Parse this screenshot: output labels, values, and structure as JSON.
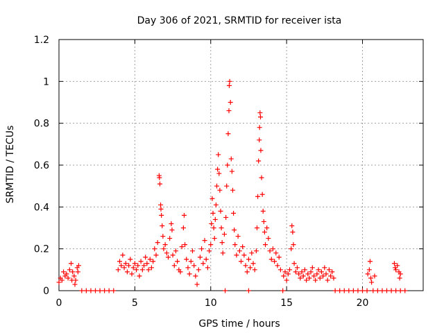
{
  "chart_data": {
    "type": "scatter",
    "title": "Day 306 of 2021, SRMTID for receiver ista",
    "xlabel": "GPS time / hours",
    "ylabel": "SRMTID / TECUs",
    "xlim": [
      0,
      24
    ],
    "ylim": [
      0,
      1.2
    ],
    "x_ticks": [
      0,
      5,
      10,
      15,
      20
    ],
    "x_tick_labels": [
      "0",
      "5",
      "10",
      "15",
      "20"
    ],
    "y_ticks": [
      0,
      0.2,
      0.4,
      0.6,
      0.8,
      1,
      1.2
    ],
    "y_tick_labels": [
      "0",
      "0.2",
      "0.4",
      "0.6",
      "0.8",
      "1",
      "1.2"
    ],
    "grid": true,
    "marker": "+",
    "color": "#ff0000",
    "series": [
      {
        "name": "SRMTID",
        "points": [
          [
            0.0,
            0.04
          ],
          [
            0.1,
            0.06
          ],
          [
            0.2,
            0.05
          ],
          [
            0.3,
            0.09
          ],
          [
            0.4,
            0.07
          ],
          [
            0.5,
            0.08
          ],
          [
            0.6,
            0.06
          ],
          [
            0.7,
            0.1
          ],
          [
            0.8,
            0.13
          ],
          [
            0.9,
            0.09
          ],
          [
            1.0,
            0.07
          ],
          [
            1.1,
            0.05
          ],
          [
            1.2,
            0.11
          ],
          [
            1.3,
            0.12
          ],
          [
            1.25,
            0.09
          ],
          [
            1.05,
            0.03
          ],
          [
            0.85,
            0.05
          ],
          [
            1.5,
            0.0
          ],
          [
            1.8,
            0.0
          ],
          [
            2.1,
            0.0
          ],
          [
            2.4,
            0.0
          ],
          [
            2.7,
            0.0
          ],
          [
            3.0,
            0.0
          ],
          [
            3.3,
            0.0
          ],
          [
            3.6,
            0.0
          ],
          [
            3.9,
            0.1
          ],
          [
            4.0,
            0.14
          ],
          [
            4.1,
            0.12
          ],
          [
            4.2,
            0.17
          ],
          [
            4.3,
            0.11
          ],
          [
            4.4,
            0.13
          ],
          [
            4.5,
            0.09
          ],
          [
            4.6,
            0.12
          ],
          [
            4.7,
            0.15
          ],
          [
            4.8,
            0.08
          ],
          [
            4.9,
            0.11
          ],
          [
            5.0,
            0.13
          ],
          [
            5.1,
            0.1
          ],
          [
            5.2,
            0.12
          ],
          [
            5.3,
            0.07
          ],
          [
            5.4,
            0.14
          ],
          [
            5.5,
            0.1
          ],
          [
            5.6,
            0.12
          ],
          [
            5.7,
            0.16
          ],
          [
            5.8,
            0.13
          ],
          [
            5.9,
            0.1
          ],
          [
            6.0,
            0.15
          ],
          [
            6.1,
            0.11
          ],
          [
            6.2,
            0.14
          ],
          [
            6.3,
            0.2
          ],
          [
            6.4,
            0.17
          ],
          [
            6.5,
            0.23
          ],
          [
            6.6,
            0.55
          ],
          [
            6.62,
            0.54
          ],
          [
            6.65,
            0.51
          ],
          [
            6.7,
            0.41
          ],
          [
            6.72,
            0.39
          ],
          [
            6.75,
            0.36
          ],
          [
            6.8,
            0.31
          ],
          [
            6.85,
            0.26
          ],
          [
            6.9,
            0.2
          ],
          [
            7.0,
            0.22
          ],
          [
            7.1,
            0.18
          ],
          [
            7.2,
            0.16
          ],
          [
            7.3,
            0.25
          ],
          [
            7.4,
            0.32
          ],
          [
            7.45,
            0.29
          ],
          [
            7.5,
            0.17
          ],
          [
            7.6,
            0.12
          ],
          [
            7.7,
            0.19
          ],
          [
            7.8,
            0.14
          ],
          [
            7.9,
            0.1
          ],
          [
            8.0,
            0.09
          ],
          [
            8.1,
            0.21
          ],
          [
            8.2,
            0.3
          ],
          [
            8.25,
            0.36
          ],
          [
            8.3,
            0.22
          ],
          [
            8.4,
            0.15
          ],
          [
            8.5,
            0.11
          ],
          [
            8.6,
            0.08
          ],
          [
            8.7,
            0.14
          ],
          [
            8.8,
            0.19
          ],
          [
            8.9,
            0.12
          ],
          [
            9.0,
            0.07
          ],
          [
            9.1,
            0.03
          ],
          [
            9.2,
            0.1
          ],
          [
            9.3,
            0.16
          ],
          [
            9.4,
            0.2
          ],
          [
            9.5,
            0.13
          ],
          [
            9.6,
            0.24
          ],
          [
            9.7,
            0.15
          ],
          [
            9.8,
            0.11
          ],
          [
            9.9,
            0.19
          ],
          [
            10.0,
            0.22
          ],
          [
            10.05,
            0.32
          ],
          [
            10.1,
            0.44
          ],
          [
            10.15,
            0.37
          ],
          [
            10.2,
            0.3
          ],
          [
            10.25,
            0.25
          ],
          [
            10.3,
            0.34
          ],
          [
            10.35,
            0.41
          ],
          [
            10.4,
            0.5
          ],
          [
            10.45,
            0.58
          ],
          [
            10.5,
            0.65
          ],
          [
            10.55,
            0.56
          ],
          [
            10.6,
            0.48
          ],
          [
            10.65,
            0.38
          ],
          [
            10.7,
            0.3
          ],
          [
            10.75,
            0.23
          ],
          [
            10.8,
            0.18
          ],
          [
            10.9,
            0.27
          ],
          [
            11.0,
            0.35
          ],
          [
            11.05,
            0.5
          ],
          [
            11.1,
            0.6
          ],
          [
            11.15,
            0.75
          ],
          [
            11.2,
            0.86
          ],
          [
            11.22,
            0.98
          ],
          [
            11.25,
            1.0
          ],
          [
            11.3,
            0.9
          ],
          [
            11.35,
            0.63
          ],
          [
            11.4,
            0.57
          ],
          [
            11.45,
            0.48
          ],
          [
            11.5,
            0.37
          ],
          [
            11.55,
            0.29
          ],
          [
            11.6,
            0.22
          ],
          [
            11.7,
            0.17
          ],
          [
            11.8,
            0.26
          ],
          [
            11.9,
            0.19
          ],
          [
            12.0,
            0.14
          ],
          [
            12.1,
            0.21
          ],
          [
            12.2,
            0.17
          ],
          [
            12.3,
            0.12
          ],
          [
            12.4,
            0.09
          ],
          [
            12.5,
            0.15
          ],
          [
            12.6,
            0.11
          ],
          [
            12.7,
            0.18
          ],
          [
            12.8,
            0.13
          ],
          [
            12.9,
            0.1
          ],
          [
            13.0,
            0.19
          ],
          [
            13.05,
            0.3
          ],
          [
            13.1,
            0.45
          ],
          [
            13.15,
            0.62
          ],
          [
            13.2,
            0.72
          ],
          [
            13.22,
            0.78
          ],
          [
            13.25,
            0.85
          ],
          [
            13.28,
            0.83
          ],
          [
            13.3,
            0.67
          ],
          [
            13.35,
            0.54
          ],
          [
            13.4,
            0.46
          ],
          [
            13.45,
            0.38
          ],
          [
            13.5,
            0.33
          ],
          [
            13.55,
            0.28
          ],
          [
            13.6,
            0.22
          ],
          [
            13.7,
            0.3
          ],
          [
            13.8,
            0.25
          ],
          [
            13.9,
            0.19
          ],
          [
            14.0,
            0.15
          ],
          [
            14.1,
            0.2
          ],
          [
            14.2,
            0.14
          ],
          [
            14.3,
            0.18
          ],
          [
            14.4,
            0.12
          ],
          [
            14.5,
            0.16
          ],
          [
            14.6,
            0.1
          ],
          [
            14.8,
            0.07
          ],
          [
            14.9,
            0.09
          ],
          [
            15.0,
            0.05
          ],
          [
            15.1,
            0.08
          ],
          [
            15.2,
            0.1
          ],
          [
            15.3,
            0.2
          ],
          [
            15.35,
            0.31
          ],
          [
            15.4,
            0.28
          ],
          [
            15.45,
            0.22
          ],
          [
            15.5,
            0.13
          ],
          [
            15.6,
            0.09
          ],
          [
            15.7,
            0.11
          ],
          [
            15.8,
            0.08
          ],
          [
            15.9,
            0.06
          ],
          [
            16.0,
            0.09
          ],
          [
            16.1,
            0.07
          ],
          [
            16.2,
            0.1
          ],
          [
            16.3,
            0.05
          ],
          [
            16.4,
            0.08
          ],
          [
            16.5,
            0.06
          ],
          [
            16.6,
            0.09
          ],
          [
            16.7,
            0.11
          ],
          [
            16.8,
            0.07
          ],
          [
            16.9,
            0.05
          ],
          [
            17.0,
            0.08
          ],
          [
            17.1,
            0.1
          ],
          [
            17.2,
            0.06
          ],
          [
            17.3,
            0.09
          ],
          [
            17.4,
            0.07
          ],
          [
            17.5,
            0.11
          ],
          [
            17.6,
            0.08
          ],
          [
            17.7,
            0.05
          ],
          [
            17.8,
            0.1
          ],
          [
            17.9,
            0.07
          ],
          [
            18.0,
            0.09
          ],
          [
            18.1,
            0.06
          ],
          [
            10.95,
            0.0
          ],
          [
            12.5,
            0.0
          ],
          [
            14.75,
            0.0
          ],
          [
            18.2,
            0.0
          ],
          [
            18.5,
            0.0
          ],
          [
            18.8,
            0.0
          ],
          [
            19.1,
            0.0
          ],
          [
            19.4,
            0.0
          ],
          [
            19.7,
            0.0
          ],
          [
            20.0,
            0.0
          ],
          [
            20.3,
            0.0
          ],
          [
            20.35,
            0.08
          ],
          [
            20.45,
            0.1
          ],
          [
            20.5,
            0.14
          ],
          [
            20.55,
            0.06
          ],
          [
            20.6,
            0.04
          ],
          [
            20.8,
            0.07
          ],
          [
            20.7,
            0.0
          ],
          [
            21.0,
            0.0
          ],
          [
            21.3,
            0.0
          ],
          [
            21.6,
            0.0
          ],
          [
            21.9,
            0.0
          ],
          [
            22.2,
            0.0
          ],
          [
            22.5,
            0.0
          ],
          [
            22.8,
            0.0
          ],
          [
            22.1,
            0.13
          ],
          [
            22.15,
            0.11
          ],
          [
            22.2,
            0.1
          ],
          [
            22.3,
            0.12
          ],
          [
            22.4,
            0.09
          ],
          [
            22.45,
            0.06
          ],
          [
            22.5,
            0.08
          ]
        ]
      }
    ]
  }
}
